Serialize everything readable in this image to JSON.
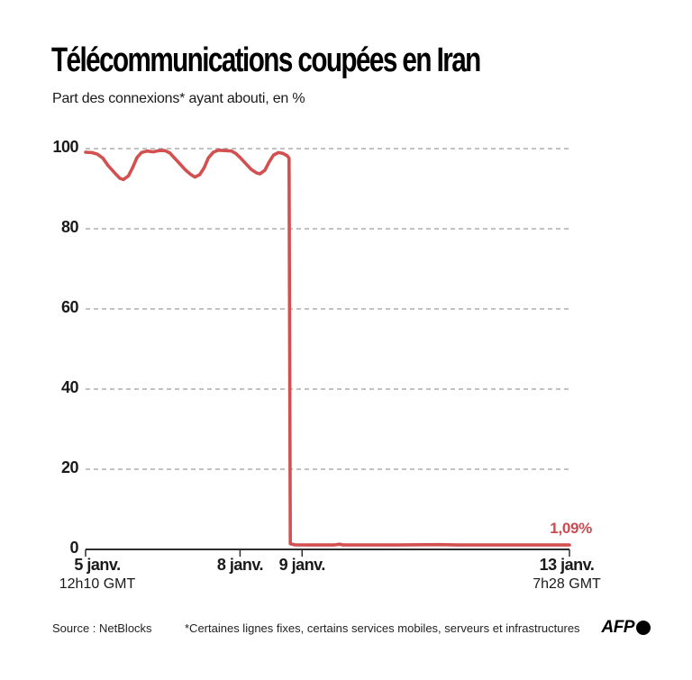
{
  "header": {
    "title": "Télécommunications coupées en Iran",
    "subtitle": "Part des connexions* ayant abouti, en %"
  },
  "chart_data": {
    "type": "line",
    "title": "Télécommunications coupées en Iran",
    "subtitle": "Part des connexions* ayant abouti, en %",
    "ylabel": "Part des connexions ayant abouti (%)",
    "ylim": [
      0,
      100
    ],
    "y_ticks": [
      "0",
      "20",
      "40",
      "60",
      "80",
      "100"
    ],
    "y_tick_values": [
      0,
      20,
      40,
      60,
      80,
      100
    ],
    "grid": "horizontal dashed",
    "legend": "none",
    "x_unit": "jours depuis le 5 janv. 12h10 GMT",
    "x_range_days": [
      0,
      7.8
    ],
    "x_ticks": [
      {
        "t": 0,
        "label": "5 janv.",
        "sublabel": "12h10 GMT"
      },
      {
        "t": 2.49,
        "label": "8 janv.",
        "sublabel": ""
      },
      {
        "t": 3.49,
        "label": "9 janv.",
        "sublabel": ""
      },
      {
        "t": 7.8,
        "label": "13 janv.",
        "sublabel": "7h28 GMT"
      }
    ],
    "series": [
      {
        "name": "Part des connexions ayant abouti",
        "color": "#d25050",
        "points": [
          [
            0.0,
            99.1
          ],
          [
            0.1,
            99.0
          ],
          [
            0.19,
            98.6
          ],
          [
            0.28,
            97.6
          ],
          [
            0.36,
            95.8
          ],
          [
            0.47,
            93.9
          ],
          [
            0.55,
            92.6
          ],
          [
            0.61,
            92.3
          ],
          [
            0.69,
            93.2
          ],
          [
            0.76,
            95.3
          ],
          [
            0.83,
            97.8
          ],
          [
            0.9,
            99.0
          ],
          [
            0.99,
            99.4
          ],
          [
            1.09,
            99.2
          ],
          [
            1.18,
            99.5
          ],
          [
            1.28,
            99.5
          ],
          [
            1.36,
            98.9
          ],
          [
            1.43,
            97.7
          ],
          [
            1.52,
            96.2
          ],
          [
            1.6,
            94.8
          ],
          [
            1.69,
            93.6
          ],
          [
            1.76,
            92.9
          ],
          [
            1.84,
            93.5
          ],
          [
            1.91,
            95.2
          ],
          [
            1.98,
            97.7
          ],
          [
            2.06,
            99.1
          ],
          [
            2.14,
            99.6
          ],
          [
            2.25,
            99.5
          ],
          [
            2.35,
            99.4
          ],
          [
            2.42,
            98.8
          ],
          [
            2.49,
            97.8
          ],
          [
            2.58,
            96.3
          ],
          [
            2.67,
            94.8
          ],
          [
            2.76,
            93.9
          ],
          [
            2.81,
            93.7
          ],
          [
            2.89,
            94.6
          ],
          [
            2.96,
            96.7
          ],
          [
            3.03,
            98.4
          ],
          [
            3.11,
            99.0
          ],
          [
            3.18,
            98.8
          ],
          [
            3.25,
            98.2
          ],
          [
            3.28,
            97.6
          ],
          [
            3.3,
            1.4
          ],
          [
            3.37,
            1.15
          ],
          [
            3.6,
            1.1
          ],
          [
            4.0,
            1.09
          ],
          [
            4.1,
            1.3
          ],
          [
            4.15,
            1.1
          ],
          [
            5.0,
            1.09
          ],
          [
            5.7,
            1.2
          ],
          [
            6.0,
            1.09
          ],
          [
            7.0,
            1.09
          ],
          [
            7.8,
            1.09
          ]
        ]
      }
    ],
    "annotation": {
      "text": "1,09%",
      "value": 1.09,
      "color": "#cc4b50"
    }
  },
  "footer": {
    "source": "Source : NetBlocks",
    "note": "*Certaines lignes fixes, certains services mobiles, serveurs et infrastructures",
    "logo": "AFP"
  }
}
